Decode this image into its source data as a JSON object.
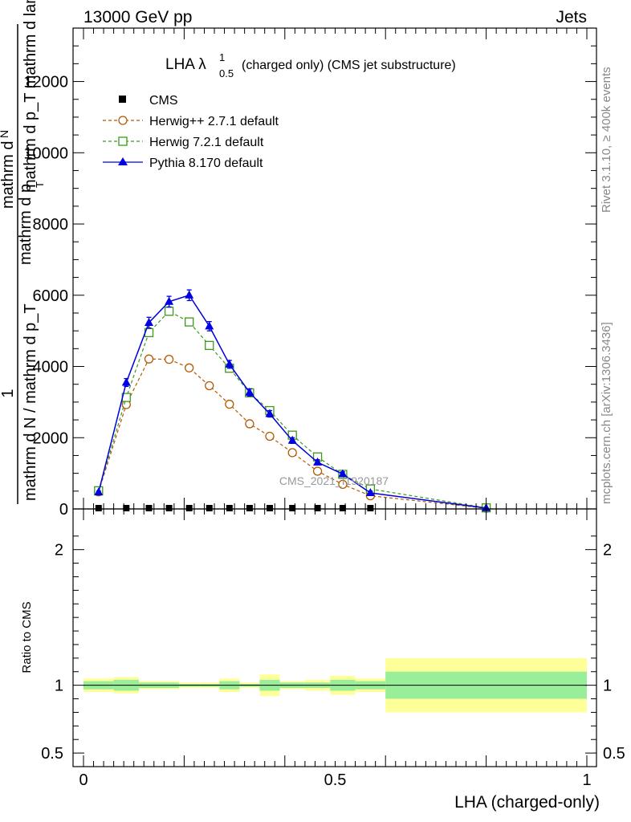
{
  "header": {
    "left": "13000 GeV pp",
    "right": "Jets"
  },
  "side_labels": {
    "rivet": "Rivet 3.1.10, ≥ 400k events",
    "mcplots": "mcplots.cern.ch [arXiv:1306.3436]"
  },
  "watermark": "CMS_2021_I1920187",
  "chart_data": [
    {
      "type": "line",
      "panel": "main",
      "title_main": "LHA λ",
      "title_sup": "1",
      "title_sub": "0.5",
      "title_rest": "(charged only) (CMS jet substructure)",
      "xlabel": "LHA (charged-only)",
      "ylabel_numerator": "1",
      "ylabel_denominator": "mathrm d N / mathrm d p_T",
      "ylabel_garbled_1": "mathrm d",
      "ylabel_garbled_2": "N",
      "ylabel_garbled_3": "mathrm d p_T mathrm d lambda",
      "ylabel_garbled_4": "mathrm d p",
      "ylabel_garbled_sub": "T",
      "xlim": [
        0,
        1
      ],
      "ylim": [
        0,
        13500
      ],
      "yticks": [
        0,
        2000,
        4000,
        6000,
        8000,
        10000,
        12000
      ],
      "ytick_labels": [
        "0",
        "2000",
        "4000",
        "6000",
        "8000",
        "10000",
        "12000"
      ],
      "x": [
        0.03,
        0.085,
        0.13,
        0.17,
        0.21,
        0.25,
        0.29,
        0.33,
        0.37,
        0.415,
        0.465,
        0.515,
        0.57,
        0.8
      ],
      "series": [
        {
          "name": "CMS",
          "marker": "square-filled",
          "color": "#000000",
          "values": [
            0,
            0,
            0,
            0,
            0,
            0,
            0,
            0,
            0,
            0,
            0,
            0,
            0,
            0
          ]
        },
        {
          "name": "Herwig++ 2.7.1 default",
          "marker": "circle-open",
          "linestyle": "dashed",
          "color": "#b35900",
          "values": [
            480,
            2930,
            4210,
            4200,
            3960,
            3460,
            2940,
            2390,
            2040,
            1580,
            1060,
            690,
            370,
            20
          ]
        },
        {
          "name": "Herwig 7.2.1 default",
          "marker": "square-open",
          "linestyle": "dashed",
          "color": "#3a9a1a",
          "values": [
            510,
            3130,
            4950,
            5550,
            5250,
            4590,
            3950,
            3260,
            2760,
            2070,
            1460,
            970,
            560,
            30
          ]
        },
        {
          "name": "Pythia 8.170 default",
          "marker": "triangle-filled",
          "linestyle": "solid",
          "color": "#0000e0",
          "values": [
            470,
            3550,
            5230,
            5820,
            6000,
            5130,
            4060,
            3270,
            2670,
            1920,
            1310,
            980,
            450,
            25
          ]
        }
      ],
      "pythia_errors": [
        30,
        110,
        150,
        150,
        150,
        130,
        110,
        100,
        90,
        80,
        70,
        60,
        50,
        5
      ]
    },
    {
      "type": "area",
      "panel": "ratio",
      "ylabel": "Ratio to CMS",
      "ylim": [
        0.4,
        2.3
      ],
      "yticks": [
        0.5,
        1,
        2
      ],
      "ytick_labels": [
        "0.5",
        "1",
        "2"
      ],
      "xticks": [
        0,
        0.5,
        1
      ],
      "xtick_labels": [
        "0",
        "0.5",
        "1"
      ],
      "bin_edges": [
        0,
        0.06,
        0.11,
        0.15,
        0.19,
        0.23,
        0.27,
        0.31,
        0.35,
        0.39,
        0.44,
        0.49,
        0.54,
        0.6,
        1.0
      ],
      "stat_band": [
        0.03,
        0.04,
        0.02,
        0.02,
        0.01,
        0.01,
        0.03,
        0.01,
        0.04,
        0.02,
        0.02,
        0.04,
        0.03,
        0.1
      ],
      "total_band": [
        0.05,
        0.06,
        0.03,
        0.03,
        0.02,
        0.02,
        0.05,
        0.02,
        0.08,
        0.03,
        0.04,
        0.07,
        0.05,
        0.2
      ],
      "band_colors": {
        "stat": "#99ee99",
        "total": "#ffff99"
      }
    }
  ]
}
